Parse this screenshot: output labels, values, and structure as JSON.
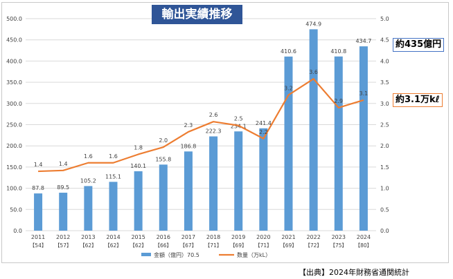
{
  "title": "輸出実績推移",
  "chart_data": {
    "type": "bar+line",
    "categories": [
      "2011",
      "2012",
      "2013",
      "2014",
      "2015",
      "2016",
      "2017",
      "2018",
      "2019",
      "2020",
      "2021",
      "2022",
      "2023",
      "2024"
    ],
    "category_sublabels": [
      "【54】",
      "【57】",
      "【62】",
      "【62】",
      "【62】",
      "【66】",
      "【67】",
      "【71】",
      "【69】",
      "【71】",
      "【69】",
      "【72】",
      "【75】",
      "【80】"
    ],
    "series": [
      {
        "name": "金額（億円）70.5",
        "type": "bar",
        "axis": "left",
        "color": "#5b9bd5",
        "values": [
          87.8,
          89.5,
          105.2,
          115.1,
          140.1,
          155.8,
          186.8,
          222.3,
          234.1,
          241.4,
          410.6,
          474.9,
          410.8,
          434.7
        ],
        "labels": [
          "87.8",
          "89.5",
          "105.2",
          "115.1",
          "140.1",
          "155.8",
          "186.8",
          "222.3",
          "234.1",
          "241.4",
          "410.6",
          "474.9",
          "410.8",
          "434.7"
        ]
      },
      {
        "name": "数量（万kL）",
        "type": "line",
        "axis": "right",
        "color": "#ed7d31",
        "values": [
          1.4,
          1.42,
          1.6,
          1.6,
          1.8,
          1.97,
          2.33,
          2.57,
          2.48,
          2.17,
          3.2,
          3.58,
          2.9,
          3.08
        ],
        "labels": [
          "1.4",
          "1.4",
          "1.6",
          "1.6",
          "1.8",
          "2.0",
          "2.3",
          "2.6",
          "2.5",
          "2.2",
          "3.2",
          "3.6",
          "2.9",
          "3.1"
        ]
      }
    ],
    "left_axis": {
      "min": 0,
      "max": 500,
      "step": 50,
      "ticks": [
        "0.0",
        "50.0",
        "100.0",
        "150.0",
        "200.0",
        "250.0",
        "300.0",
        "350.0",
        "400.0",
        "450.0",
        "500.0"
      ]
    },
    "right_axis": {
      "min": 0,
      "max": 5,
      "step": 0.5,
      "ticks": [
        "0.0",
        "0.5",
        "1.0",
        "1.5",
        "2.0",
        "2.5",
        "3.0",
        "3.5",
        "4.0",
        "4.5",
        "5.0"
      ]
    },
    "grid": true,
    "legend": "bottom"
  },
  "callouts": {
    "amount": "約435億円",
    "volume": "約3.1万kℓ"
  },
  "source": "【出典】2024年財務省通関統計"
}
